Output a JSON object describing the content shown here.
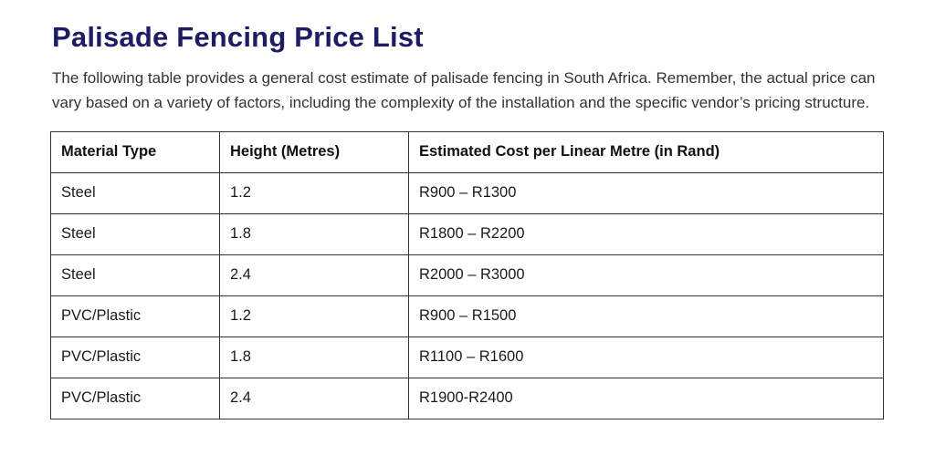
{
  "colors": {
    "title": "#1d1c64",
    "body-text": "#333333",
    "table-text": "#1a1a1a",
    "table-border": "#333333",
    "background": "#ffffff"
  },
  "title": "Palisade Fencing Price List",
  "intro": "The following table provides a general cost estimate of palisade fencing in South Africa. Remember, the actual price can vary based on a variety of factors, including the complexity of the installation and the specific vendor’s pricing structure.",
  "table": {
    "headers": [
      "Material Type",
      "Height (Metres)",
      "Estimated Cost per Linear Metre (in Rand)"
    ],
    "rows": [
      [
        "Steel",
        "1.2",
        "R900 – R1300"
      ],
      [
        "Steel",
        "1.8",
        "R1800 – R2200"
      ],
      [
        "Steel",
        "2.4",
        "R2000 – R3000"
      ],
      [
        "PVC/Plastic",
        "1.2",
        "R900 – R1500"
      ],
      [
        "PVC/Plastic",
        "1.8",
        "R1100 – R1600"
      ],
      [
        "PVC/Plastic",
        "2.4",
        "R1900-R2400"
      ]
    ]
  }
}
